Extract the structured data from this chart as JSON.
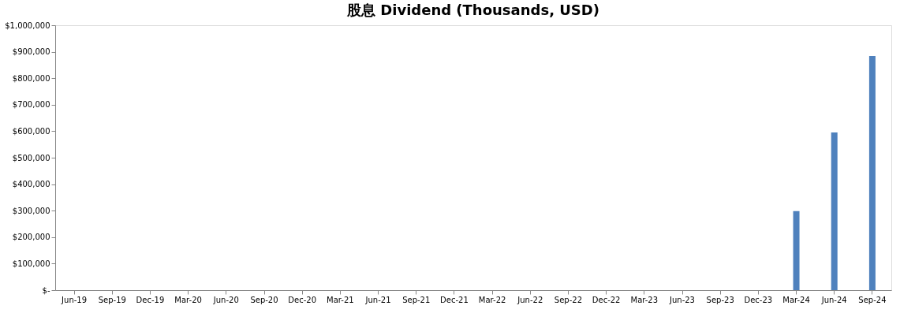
{
  "chart_data": {
    "type": "bar",
    "title": "股息 Dividend (Thousands, USD)",
    "categories": [
      "Jun-19",
      "Sep-19",
      "Dec-19",
      "Mar-20",
      "Jun-20",
      "Sep-20",
      "Dec-20",
      "Mar-21",
      "Jun-21",
      "Sep-21",
      "Dec-21",
      "Mar-22",
      "Jun-22",
      "Sep-22",
      "Dec-22",
      "Mar-23",
      "Jun-23",
      "Sep-23",
      "Dec-23",
      "Mar-24",
      "Jun-24",
      "Sep-24"
    ],
    "values": [
      0,
      0,
      0,
      0,
      0,
      0,
      0,
      0,
      0,
      0,
      0,
      0,
      0,
      0,
      0,
      0,
      0,
      0,
      0,
      298000,
      595000,
      884000
    ],
    "color": "#4f81bd",
    "ylim": [
      0,
      1000000
    ],
    "yticks": [
      {
        "value": 0,
        "label": "$-"
      },
      {
        "value": 100000,
        "label": "$100,000"
      },
      {
        "value": 200000,
        "label": "$200,000"
      },
      {
        "value": 300000,
        "label": "$300,000"
      },
      {
        "value": 400000,
        "label": "$400,000"
      },
      {
        "value": 500000,
        "label": "$500,000"
      },
      {
        "value": 600000,
        "label": "$600,000"
      },
      {
        "value": 700000,
        "label": "$700,000"
      },
      {
        "value": 800000,
        "label": "$800,000"
      },
      {
        "value": 900000,
        "label": "$900,000"
      },
      {
        "value": 1000000,
        "label": "$1,000,000"
      }
    ],
    "grid": false
  }
}
